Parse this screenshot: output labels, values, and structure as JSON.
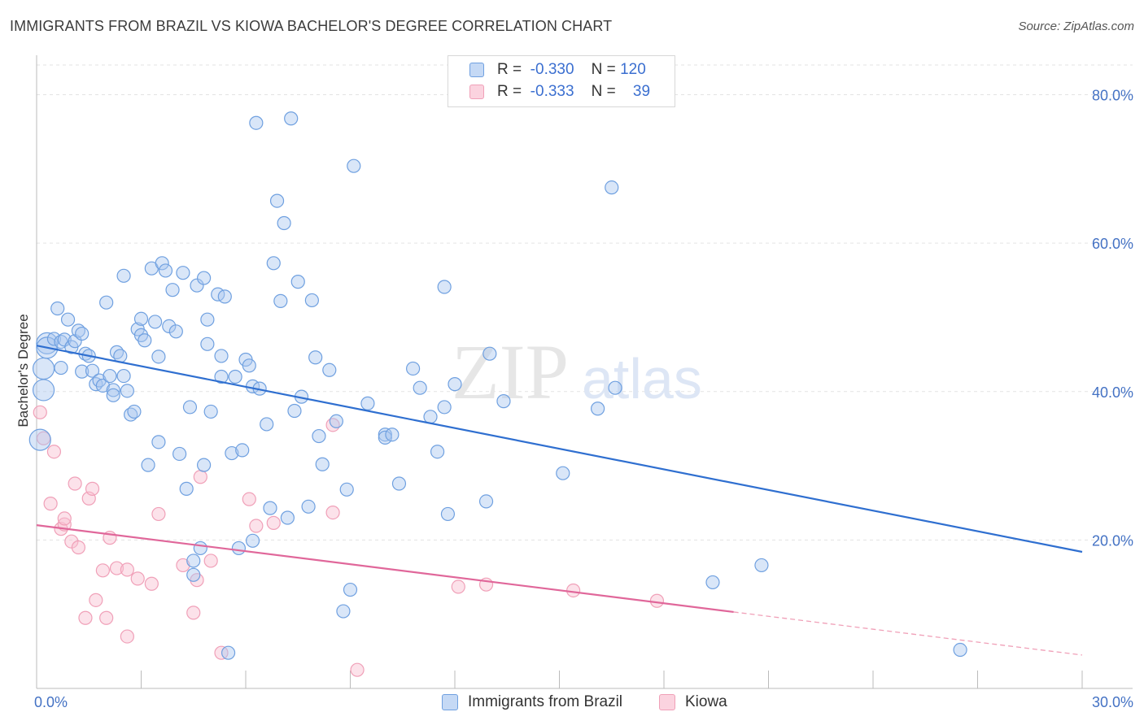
{
  "header": {
    "title": "IMMIGRANTS FROM BRAZIL VS KIOWA BACHELOR'S DEGREE CORRELATION CHART",
    "source": "Source: ZipAtlas.com"
  },
  "watermark": {
    "zip": "ZIP",
    "atlas": "atlas"
  },
  "legend": {
    "rows": [
      {
        "r_label": "R =",
        "r_value": "-0.330",
        "n_label": "N =",
        "n_value": "120"
      },
      {
        "r_label": "R =",
        "r_value": "-0.333",
        "n_label": "N =",
        "n_value": "39"
      }
    ]
  },
  "chart_data": {
    "type": "scatter",
    "title": "IMMIGRANTS FROM BRAZIL VS KIOWA BACHELOR'S DEGREE CORRELATION CHART",
    "xlabel": "",
    "ylabel": "Bachelor's Degree",
    "xlim": [
      0,
      30
    ],
    "ylim": [
      0,
      84
    ],
    "x_tick_labels": [
      "0.0%",
      "30.0%"
    ],
    "y_ticks": [
      20,
      40,
      60,
      80
    ],
    "y_tick_labels": [
      "20.0%",
      "40.0%",
      "60.0%",
      "80.0%"
    ],
    "grid": true,
    "legend_position": "top-center",
    "colors": {
      "brazil": "#6fa0e0",
      "brazil_line": "#2f6fd0",
      "kiowa": "#f0a0b8",
      "kiowa_line": "#e0679a"
    },
    "series": [
      {
        "name": "Immigrants from Brazil",
        "r": -0.33,
        "n": 120,
        "trend": {
          "x": [
            0,
            30
          ],
          "y": [
            46.2,
            18.4
          ]
        },
        "points": [
          [
            0.1,
            33.5
          ],
          [
            0.2,
            40.2
          ],
          [
            0.2,
            43.1
          ],
          [
            0.3,
            46.5
          ],
          [
            0.3,
            45.9
          ],
          [
            0.5,
            47.1
          ],
          [
            0.6,
            51.2
          ],
          [
            0.7,
            43.2
          ],
          [
            0.7,
            46.7
          ],
          [
            0.8,
            47.0
          ],
          [
            0.9,
            49.7
          ],
          [
            1.0,
            46.0
          ],
          [
            1.1,
            46.8
          ],
          [
            1.2,
            48.2
          ],
          [
            1.3,
            47.8
          ],
          [
            1.3,
            42.7
          ],
          [
            1.4,
            45.1
          ],
          [
            1.5,
            44.8
          ],
          [
            1.6,
            42.8
          ],
          [
            1.7,
            41.0
          ],
          [
            1.8,
            41.5
          ],
          [
            1.9,
            40.8
          ],
          [
            2.0,
            52.0
          ],
          [
            2.1,
            42.1
          ],
          [
            2.2,
            40.2
          ],
          [
            2.3,
            45.3
          ],
          [
            2.4,
            44.8
          ],
          [
            2.5,
            42.1
          ],
          [
            2.5,
            55.6
          ],
          [
            2.6,
            40.1
          ],
          [
            2.7,
            36.9
          ],
          [
            2.8,
            37.3
          ],
          [
            2.9,
            48.4
          ],
          [
            3.0,
            49.8
          ],
          [
            3.0,
            47.6
          ],
          [
            3.1,
            46.9
          ],
          [
            3.2,
            30.1
          ],
          [
            3.3,
            56.6
          ],
          [
            3.4,
            49.4
          ],
          [
            3.5,
            44.7
          ],
          [
            3.5,
            33.2
          ],
          [
            3.6,
            57.3
          ],
          [
            3.7,
            56.3
          ],
          [
            3.8,
            48.8
          ],
          [
            3.9,
            53.7
          ],
          [
            4.0,
            48.1
          ],
          [
            4.1,
            31.6
          ],
          [
            4.2,
            56.0
          ],
          [
            4.3,
            26.9
          ],
          [
            4.4,
            37.9
          ],
          [
            4.5,
            17.2
          ],
          [
            4.5,
            15.3
          ],
          [
            4.6,
            54.3
          ],
          [
            4.7,
            18.9
          ],
          [
            4.8,
            55.3
          ],
          [
            4.9,
            49.7
          ],
          [
            4.9,
            46.4
          ],
          [
            5.0,
            37.3
          ],
          [
            5.2,
            53.1
          ],
          [
            5.3,
            44.8
          ],
          [
            5.3,
            42.0
          ],
          [
            5.4,
            52.8
          ],
          [
            5.5,
            4.8
          ],
          [
            5.6,
            31.7
          ],
          [
            5.7,
            42.0
          ],
          [
            5.8,
            18.9
          ],
          [
            5.9,
            32.1
          ],
          [
            6.0,
            44.3
          ],
          [
            6.1,
            43.5
          ],
          [
            6.2,
            19.9
          ],
          [
            6.2,
            40.7
          ],
          [
            6.3,
            76.2
          ],
          [
            6.4,
            40.4
          ],
          [
            6.6,
            35.6
          ],
          [
            6.7,
            24.3
          ],
          [
            6.8,
            57.3
          ],
          [
            6.9,
            65.7
          ],
          [
            7.0,
            52.2
          ],
          [
            7.1,
            62.7
          ],
          [
            7.2,
            23.0
          ],
          [
            7.3,
            76.8
          ],
          [
            7.4,
            37.4
          ],
          [
            7.5,
            54.8
          ],
          [
            7.6,
            39.3
          ],
          [
            7.8,
            24.5
          ],
          [
            7.9,
            52.3
          ],
          [
            8.0,
            44.6
          ],
          [
            8.1,
            34.0
          ],
          [
            8.2,
            30.2
          ],
          [
            8.4,
            42.9
          ],
          [
            8.6,
            36.0
          ],
          [
            8.8,
            10.4
          ],
          [
            8.9,
            26.8
          ],
          [
            9.0,
            13.3
          ],
          [
            9.1,
            70.4
          ],
          [
            9.5,
            38.4
          ],
          [
            10.0,
            34.2
          ],
          [
            10.0,
            33.8
          ],
          [
            10.2,
            34.2
          ],
          [
            10.4,
            27.6
          ],
          [
            10.8,
            43.1
          ],
          [
            11.0,
            40.5
          ],
          [
            11.3,
            36.6
          ],
          [
            11.5,
            31.9
          ],
          [
            11.7,
            37.9
          ],
          [
            11.7,
            54.1
          ],
          [
            11.8,
            23.5
          ],
          [
            12.0,
            41.0
          ],
          [
            12.9,
            25.2
          ],
          [
            13.0,
            45.1
          ],
          [
            13.4,
            38.7
          ],
          [
            15.1,
            29.0
          ],
          [
            16.1,
            37.7
          ],
          [
            16.6,
            40.5
          ],
          [
            16.5,
            67.5
          ],
          [
            19.4,
            14.3
          ],
          [
            20.8,
            16.6
          ],
          [
            26.5,
            5.2
          ],
          [
            4.8,
            30.1
          ],
          [
            2.2,
            39.5
          ]
        ]
      },
      {
        "name": "Kiowa",
        "r": -0.333,
        "n": 39,
        "trend": {
          "x": [
            0,
            20.0
          ],
          "y": [
            22.0,
            10.3
          ]
        },
        "trend_dashed": {
          "x": [
            20.0,
            30
          ],
          "y": [
            10.3,
            4.5
          ]
        },
        "points": [
          [
            0.1,
            37.2
          ],
          [
            0.2,
            33.7
          ],
          [
            0.4,
            24.9
          ],
          [
            0.5,
            31.9
          ],
          [
            0.7,
            21.5
          ],
          [
            0.8,
            22.1
          ],
          [
            0.8,
            22.9
          ],
          [
            1.0,
            19.8
          ],
          [
            1.1,
            27.6
          ],
          [
            1.2,
            19.0
          ],
          [
            1.4,
            9.5
          ],
          [
            1.5,
            25.6
          ],
          [
            1.6,
            26.9
          ],
          [
            1.7,
            11.9
          ],
          [
            1.9,
            15.9
          ],
          [
            2.0,
            9.5
          ],
          [
            2.1,
            20.3
          ],
          [
            2.3,
            16.2
          ],
          [
            2.6,
            7.0
          ],
          [
            2.6,
            16.0
          ],
          [
            2.9,
            14.8
          ],
          [
            3.3,
            14.1
          ],
          [
            3.5,
            23.5
          ],
          [
            4.2,
            16.6
          ],
          [
            4.5,
            10.2
          ],
          [
            4.6,
            14.6
          ],
          [
            4.7,
            28.5
          ],
          [
            5.0,
            17.2
          ],
          [
            5.3,
            4.8
          ],
          [
            6.1,
            25.5
          ],
          [
            6.3,
            21.9
          ],
          [
            6.8,
            22.3
          ],
          [
            8.5,
            23.7
          ],
          [
            8.5,
            35.5
          ],
          [
            9.2,
            2.5
          ],
          [
            12.1,
            13.7
          ],
          [
            12.9,
            14.0
          ],
          [
            15.4,
            13.2
          ],
          [
            17.8,
            11.8
          ]
        ]
      }
    ]
  },
  "bottom_legend": {
    "items": [
      {
        "label": "Immigrants from Brazil"
      },
      {
        "label": "Kiowa"
      }
    ]
  }
}
